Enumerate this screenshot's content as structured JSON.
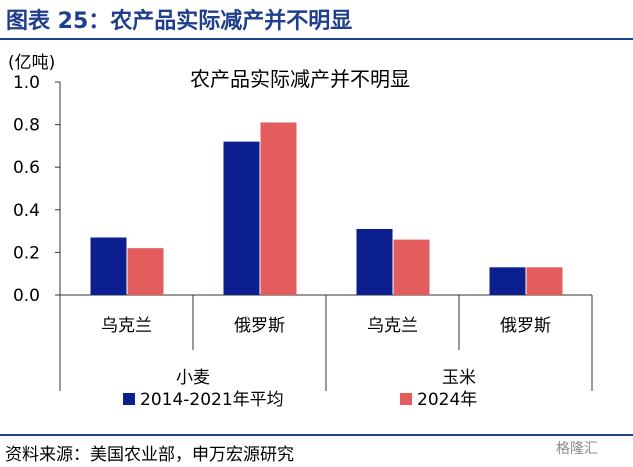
{
  "figure_title": "图表 25：农产品实际减产并不明显",
  "source": "资料来源：美国农业部，申万宏源研究",
  "watermark": "格隆汇",
  "colors": {
    "series1": "#0b1f8f",
    "series2": "#e35d5d",
    "title": "#1f3e8c"
  },
  "chart_data": {
    "type": "bar",
    "title": "农产品实际减产并不明显",
    "ylabel": "(亿吨)",
    "ylim": [
      0,
      1.0
    ],
    "yticks": [
      "0.0",
      "0.2",
      "0.4",
      "0.6",
      "0.8",
      "1.0"
    ],
    "categories": [
      "乌克兰",
      "俄罗斯",
      "乌克兰",
      "俄罗斯"
    ],
    "groups": [
      {
        "label": "小麦",
        "categories": [
          "乌克兰",
          "俄罗斯"
        ]
      },
      {
        "label": "玉米",
        "categories": [
          "乌克兰",
          "俄罗斯"
        ]
      }
    ],
    "series": [
      {
        "name": "2014-2021年平均",
        "values": [
          0.27,
          0.72,
          0.31,
          0.13
        ]
      },
      {
        "name": "2024年",
        "values": [
          0.22,
          0.81,
          0.26,
          0.13
        ]
      }
    ],
    "grid": false,
    "legend": "bottom"
  }
}
